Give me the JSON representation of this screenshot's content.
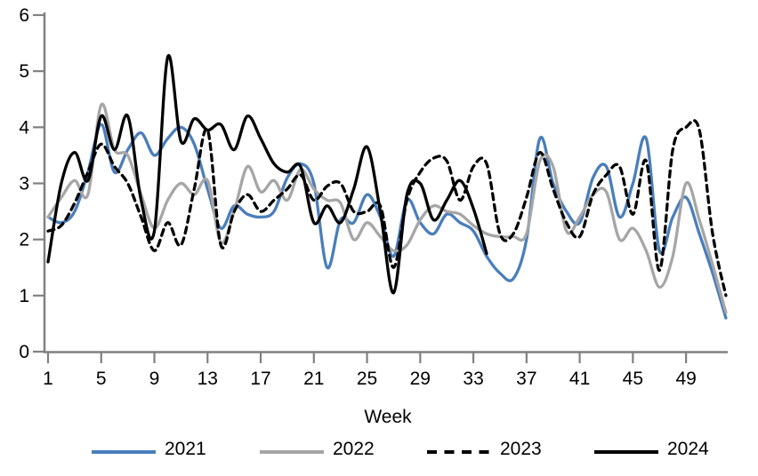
{
  "chart_data": {
    "type": "line",
    "title": "",
    "xlabel": "Week",
    "ylabel": "",
    "ylim": [
      0,
      6
    ],
    "xlim": [
      1,
      52
    ],
    "grid": false,
    "legend_position": "bottom",
    "y_ticks": [
      0,
      1,
      2,
      3,
      4,
      5,
      6
    ],
    "x_ticks": [
      1,
      5,
      9,
      13,
      17,
      21,
      25,
      29,
      33,
      37,
      41,
      45,
      49
    ],
    "x": [
      1,
      2,
      3,
      4,
      5,
      6,
      7,
      8,
      9,
      10,
      11,
      12,
      13,
      14,
      15,
      16,
      17,
      18,
      19,
      20,
      21,
      22,
      23,
      24,
      25,
      26,
      27,
      28,
      29,
      30,
      31,
      32,
      33,
      34,
      35,
      36,
      37,
      38,
      39,
      40,
      41,
      42,
      43,
      44,
      45,
      46,
      47,
      48,
      49,
      50,
      51,
      52
    ],
    "series": [
      {
        "name": "2021",
        "color": "#4a7ebb",
        "dashed": false,
        "values": [
          2.4,
          2.3,
          2.5,
          3.2,
          4.05,
          3.2,
          3.6,
          3.9,
          3.5,
          3.8,
          4.0,
          3.7,
          2.9,
          2.2,
          2.6,
          2.45,
          2.4,
          2.5,
          3.1,
          3.35,
          3.0,
          1.5,
          2.35,
          2.3,
          2.8,
          2.4,
          1.7,
          2.7,
          2.3,
          2.1,
          2.45,
          2.3,
          2.15,
          1.7,
          1.4,
          1.3,
          2.0,
          3.8,
          3.0,
          2.5,
          2.3,
          3.1,
          3.3,
          2.4,
          3.0,
          3.8,
          1.8,
          2.4,
          2.75,
          2.1,
          1.4,
          0.6
        ]
      },
      {
        "name": "2022",
        "color": "#a6a6a6",
        "dashed": false,
        "values": [
          2.4,
          2.75,
          3.05,
          2.8,
          4.4,
          3.6,
          3.5,
          2.8,
          2.2,
          2.7,
          3.0,
          2.8,
          3.05,
          1.95,
          2.5,
          3.3,
          2.85,
          3.05,
          2.7,
          3.25,
          2.9,
          2.7,
          2.65,
          2.0,
          2.3,
          2.05,
          1.8,
          1.9,
          2.35,
          2.6,
          2.5,
          2.45,
          2.25,
          2.1,
          2.05,
          2.05,
          2.1,
          3.4,
          3.3,
          2.15,
          2.4,
          2.8,
          2.85,
          2.0,
          2.2,
          1.8,
          1.15,
          1.7,
          3.0,
          2.35,
          1.55,
          0.7
        ]
      },
      {
        "name": "2023",
        "color": "#000000",
        "dashed": true,
        "values": [
          2.15,
          2.25,
          2.65,
          3.2,
          3.7,
          3.3,
          3.0,
          2.4,
          1.8,
          2.3,
          1.9,
          2.9,
          3.95,
          1.9,
          2.5,
          2.8,
          2.5,
          2.7,
          2.9,
          3.15,
          2.7,
          2.95,
          3.0,
          2.5,
          2.5,
          2.6,
          1.5,
          2.7,
          3.2,
          3.45,
          3.4,
          2.7,
          3.3,
          3.35,
          2.1,
          2.1,
          2.75,
          3.55,
          2.9,
          2.3,
          2.05,
          2.8,
          3.15,
          3.3,
          2.45,
          3.4,
          1.45,
          3.6,
          4.0,
          3.95,
          2.1,
          1.0
        ]
      },
      {
        "name": "2024",
        "color": "#000000",
        "dashed": false,
        "values": [
          1.6,
          3.0,
          3.55,
          3.05,
          4.2,
          3.6,
          4.2,
          2.7,
          2.15,
          5.25,
          3.75,
          4.15,
          3.95,
          4.05,
          3.6,
          4.2,
          3.8,
          3.35,
          3.2,
          3.3,
          2.3,
          2.6,
          2.3,
          2.9,
          3.65,
          2.5,
          1.05,
          2.8,
          3.0,
          2.35,
          2.7,
          3.05,
          2.55,
          1.75
        ]
      }
    ],
    "axis_color": "#808080",
    "tick_label_color": "#000000"
  }
}
